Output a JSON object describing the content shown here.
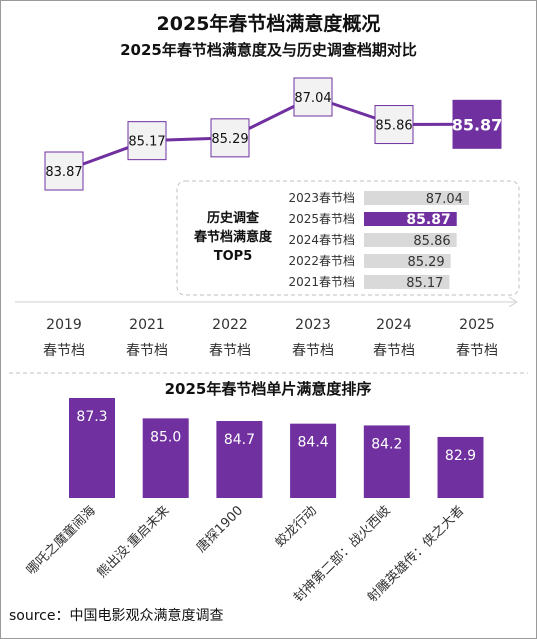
{
  "header": {
    "title": "2025年春节档满意度概况"
  },
  "chart_data": [
    {
      "type": "line",
      "title": "2025年春节档满意度及与历史调查档期对比",
      "categories": [
        "2019",
        "2021",
        "2022",
        "2023",
        "2024",
        "2025"
      ],
      "category_sublabel": "春节档",
      "values": [
        83.87,
        85.17,
        85.29,
        87.04,
        85.86,
        85.87
      ],
      "value_labels": [
        "83.87",
        "85.17",
        "85.29",
        "87.04",
        "85.86",
        "85.87"
      ],
      "highlight_index": 5,
      "line_color": "#7030a0",
      "ylim": [
        83.0,
        88.0
      ]
    },
    {
      "type": "bar",
      "orientation": "horizontal",
      "title": "历史调查春节档满意度TOP5",
      "title_lines": [
        "历史调查",
        "春节档满意度",
        "TOP5"
      ],
      "categories": [
        "2023春节档",
        "2025春节档",
        "2024春节档",
        "2022春节档",
        "2021春节档"
      ],
      "values": [
        87.04,
        85.87,
        85.86,
        85.29,
        85.17
      ],
      "value_labels": [
        "87.04",
        "85.87",
        "85.86",
        "85.29",
        "85.17"
      ],
      "highlight_index": 1,
      "highlight_color": "#7030a0",
      "bar_color": "#d9d9d9",
      "xlim": [
        77.0,
        88.0
      ]
    },
    {
      "type": "bar",
      "title": "2025年春节档单片满意度排序",
      "categories": [
        "哪吒之魔童闹海",
        "熊出没·重启未来",
        "唐探1900",
        "蛟龙行动",
        "封神第二部：战火西岐",
        "射雕英雄传：侠之大者"
      ],
      "values": [
        87.3,
        85.0,
        84.7,
        84.4,
        84.2,
        82.9
      ],
      "value_labels": [
        "87.3",
        "85.0",
        "84.7",
        "84.4",
        "84.2",
        "82.9"
      ],
      "bar_color": "#7030a0",
      "ylim": [
        76.0,
        88.0
      ]
    }
  ],
  "footer": {
    "source": "source：中国电影观众满意度调查"
  }
}
